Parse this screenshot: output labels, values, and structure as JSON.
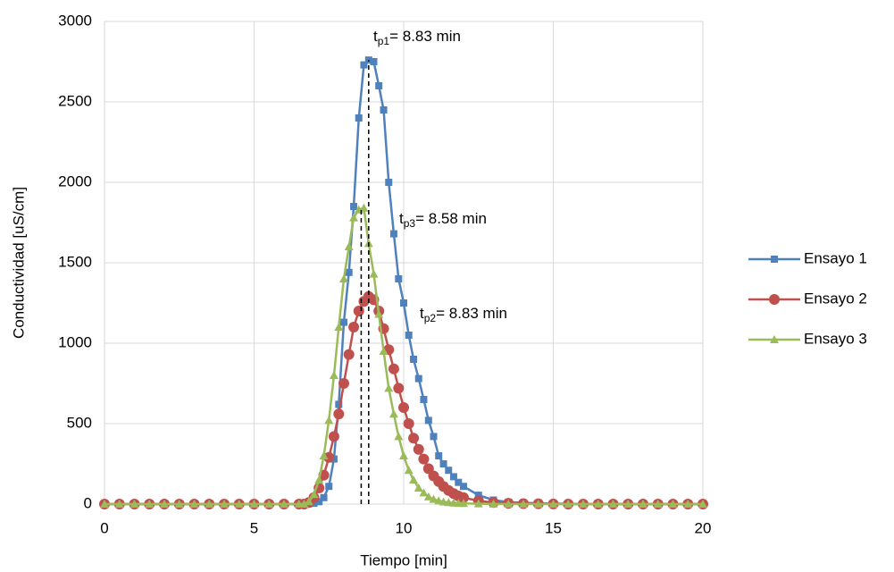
{
  "chart_data": {
    "type": "line",
    "x_label": "Tiempo [min]",
    "y_label": "Conductividad  [uS/cm]",
    "x": [
      0,
      0.5,
      1,
      1.5,
      2,
      2.5,
      3,
      3.5,
      4,
      4.5,
      5,
      5.5,
      6,
      6.5,
      6.67,
      6.83,
      7.0,
      7.17,
      7.33,
      7.5,
      7.67,
      7.83,
      8.0,
      8.17,
      8.33,
      8.5,
      8.67,
      8.83,
      9.0,
      9.17,
      9.33,
      9.5,
      9.67,
      9.83,
      10.0,
      10.17,
      10.33,
      10.5,
      10.67,
      10.83,
      11.0,
      11.17,
      11.33,
      11.5,
      11.67,
      11.83,
      12.0,
      12.5,
      13,
      13.5,
      14,
      14.5,
      15,
      15.5,
      16,
      16.5,
      17,
      17.5,
      18,
      18.5,
      19,
      19.5,
      20
    ],
    "series": [
      {
        "name": "Ensayo 1",
        "color": "#4f81bd",
        "marker": "square",
        "values": [
          0,
          0,
          0,
          0,
          0,
          0,
          0,
          0,
          0,
          0,
          0,
          0,
          0,
          0,
          0,
          2,
          5,
          15,
          40,
          110,
          280,
          620,
          1130,
          1440,
          1850,
          2400,
          2730,
          2760,
          2750,
          2600,
          2450,
          2000,
          1680,
          1400,
          1250,
          1050,
          900,
          780,
          650,
          520,
          420,
          300,
          250,
          210,
          170,
          135,
          110,
          55,
          25,
          12,
          8,
          5,
          3,
          2,
          1,
          0,
          0,
          0,
          0,
          0,
          0,
          0,
          0
        ]
      },
      {
        "name": "Ensayo 2",
        "color": "#c0504d",
        "marker": "circle",
        "values": [
          0,
          0,
          0,
          0,
          0,
          0,
          0,
          0,
          0,
          0,
          0,
          0,
          0,
          0,
          0,
          10,
          40,
          100,
          180,
          290,
          420,
          560,
          750,
          930,
          1100,
          1200,
          1260,
          1290,
          1270,
          1200,
          1090,
          960,
          840,
          720,
          600,
          500,
          410,
          340,
          280,
          220,
          175,
          140,
          110,
          85,
          65,
          50,
          40,
          20,
          10,
          5,
          3,
          2,
          1,
          0,
          0,
          0,
          0,
          0,
          0,
          0,
          0,
          0,
          0
        ]
      },
      {
        "name": "Ensayo 3",
        "color": "#9bbb59",
        "marker": "triangle",
        "values": [
          0,
          0,
          0,
          0,
          0,
          0,
          0,
          0,
          0,
          0,
          0,
          0,
          0,
          0,
          0,
          15,
          60,
          150,
          300,
          520,
          800,
          1100,
          1400,
          1600,
          1780,
          1830,
          1840,
          1620,
          1430,
          1180,
          950,
          720,
          560,
          420,
          300,
          210,
          150,
          100,
          70,
          45,
          30,
          20,
          14,
          10,
          7,
          5,
          4,
          2,
          1,
          0,
          0,
          0,
          0,
          0,
          0,
          0,
          0,
          0,
          0,
          0,
          0,
          0,
          0
        ]
      }
    ],
    "xlim": [
      0,
      20
    ],
    "xticks": [
      0,
      5,
      10,
      15,
      20
    ],
    "ylim": [
      0,
      3000
    ],
    "yticks": [
      0,
      500,
      1000,
      1500,
      2000,
      2500,
      3000
    ],
    "grid": true,
    "legend": "right",
    "peak_lines": [
      {
        "x": 8.58,
        "y": 1840
      },
      {
        "x": 8.83,
        "y": 2760
      }
    ],
    "annotations": [
      {
        "text": "t",
        "sub": "p1",
        "rest": "= 8.83 min"
      },
      {
        "text": "t",
        "sub": "p3",
        "rest": "= 8.58 min"
      },
      {
        "text": "t",
        "sub": "p2",
        "rest": "= 8.83 min"
      }
    ]
  }
}
